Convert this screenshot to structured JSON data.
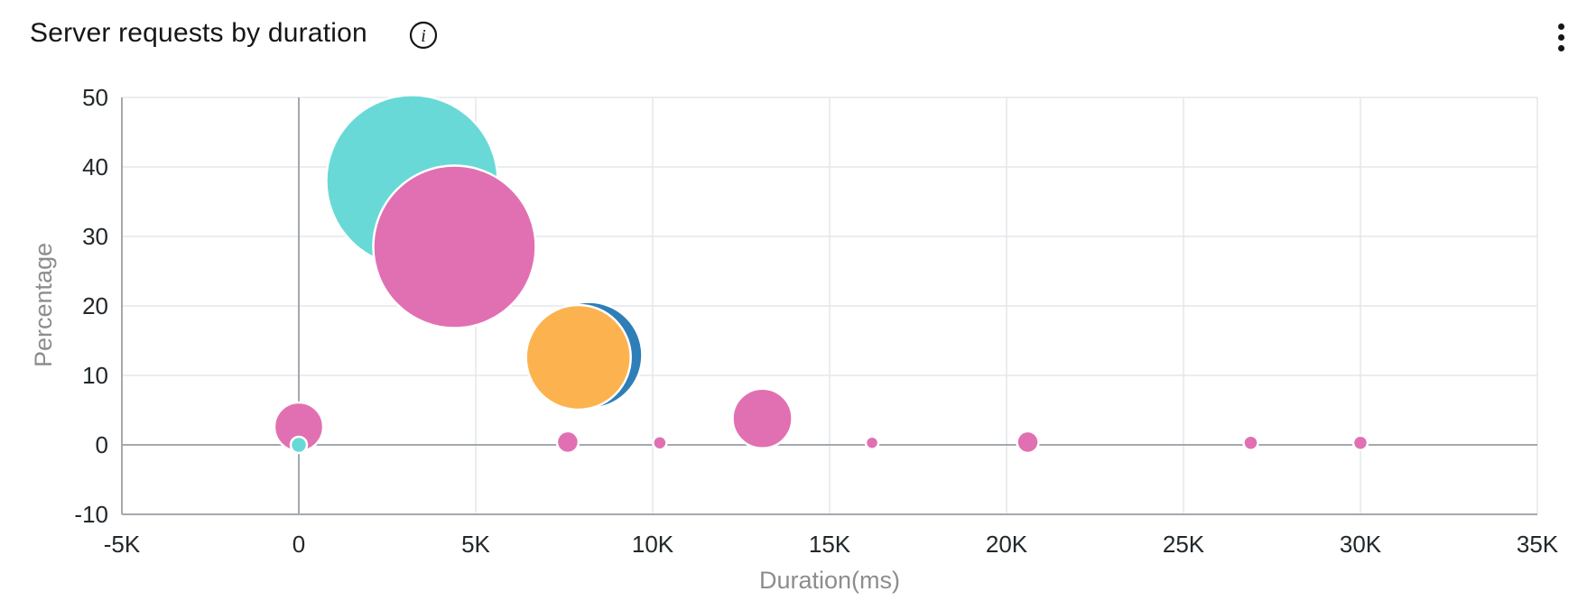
{
  "header": {
    "title": "Server requests by duration",
    "info_icon_glyph": "i",
    "menu": "overflow-menu"
  },
  "chart_data": {
    "type": "scatter",
    "subtype": "bubble",
    "title": "Server requests by duration",
    "xlabel": "Duration(ms)",
    "ylabel": "Percentage",
    "xlim": [
      -5000,
      35000
    ],
    "ylim": [
      -10,
      50
    ],
    "grid": true,
    "legend": "none",
    "x_ticks": [
      {
        "value": -5000,
        "label": "-5K"
      },
      {
        "value": 0,
        "label": "0"
      },
      {
        "value": 5000,
        "label": "5K"
      },
      {
        "value": 10000,
        "label": "10K"
      },
      {
        "value": 15000,
        "label": "15K"
      },
      {
        "value": 20000,
        "label": "20K"
      },
      {
        "value": 25000,
        "label": "25K"
      },
      {
        "value": 30000,
        "label": "30K"
      },
      {
        "value": 35000,
        "label": "35K"
      }
    ],
    "y_ticks": [
      {
        "value": -10,
        "label": "-10"
      },
      {
        "value": 0,
        "label": "0"
      },
      {
        "value": 10,
        "label": "10"
      },
      {
        "value": 20,
        "label": "20"
      },
      {
        "value": 30,
        "label": "30"
      },
      {
        "value": 40,
        "label": "40"
      },
      {
        "value": 50,
        "label": "50"
      }
    ],
    "colors": {
      "teal": "#68d9d6",
      "pink": "#e170b2",
      "orange": "#fcb34f",
      "blue": "#2e7eb8",
      "bubble_stroke": "#ffffff",
      "gridline": "#e4e7ec",
      "axisline": "#a4a9ae",
      "tick_text": "#21272a",
      "axis_title_text": "#8d8d8d"
    },
    "bubbles": [
      {
        "x": 3200,
        "y": 38,
        "r": 95,
        "color": "teal"
      },
      {
        "x": 4400,
        "y": 28.5,
        "r": 90,
        "color": "pink"
      },
      {
        "x": 8200,
        "y": 12.9,
        "r": 59,
        "color": "blue"
      },
      {
        "x": 7900,
        "y": 12.6,
        "r": 58,
        "color": "orange"
      },
      {
        "x": 0,
        "y": 2.6,
        "r": 27,
        "color": "pink"
      },
      {
        "x": 0,
        "y": 0,
        "r": 9,
        "color": "teal"
      },
      {
        "x": 7600,
        "y": 0.4,
        "r": 12,
        "color": "pink"
      },
      {
        "x": 10200,
        "y": 0.3,
        "r": 7.5,
        "color": "pink"
      },
      {
        "x": 13100,
        "y": 3.8,
        "r": 33,
        "color": "pink"
      },
      {
        "x": 16200,
        "y": 0.3,
        "r": 7,
        "color": "pink"
      },
      {
        "x": 20600,
        "y": 0.4,
        "r": 12,
        "color": "pink"
      },
      {
        "x": 26900,
        "y": 0.3,
        "r": 8,
        "color": "pink"
      },
      {
        "x": 30000,
        "y": 0.3,
        "r": 8,
        "color": "pink"
      }
    ]
  }
}
